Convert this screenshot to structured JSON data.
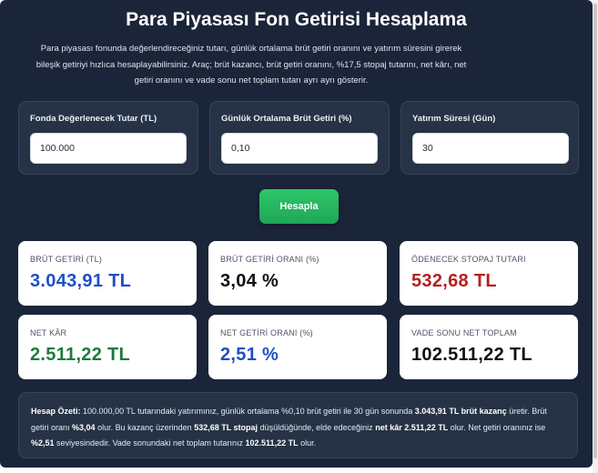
{
  "header": {
    "title": "Para Piyasası Fon Getirisi Hesaplama",
    "desc_line1": "Para piyasası fonunda değerlendireceğiniz tutarı, günlük ortalama brüt getiri oranını ve yatırım süresini girerek",
    "desc_line2": "bileşik getiriyi hızlıca hesaplayabilirsiniz. Araç; brüt kazancı, brüt getiri oranını, %17,5 stopaj tutarını, net kârı, net",
    "desc_line3": "getiri oranını ve vade sonu net toplam tutarı ayrı ayrı gösterir."
  },
  "inputs": {
    "amount": {
      "label": "Fonda Değerlenecek Tutar (TL)",
      "value": "100.000"
    },
    "rate": {
      "label": "Günlük Ortalama Brüt Getiri (%)",
      "value": "0,10"
    },
    "days": {
      "label": "Yatırım Süresi (Gün)",
      "value": "30"
    }
  },
  "calculate_label": "Hesapla",
  "results": [
    {
      "label": "BRÜT GETİRİ (TL)",
      "value": "3.043,91 TL",
      "color": "#1f4fc4"
    },
    {
      "label": "BRÜT GETİRİ ORANI (%)",
      "value": "3,04 %",
      "color": "#111111"
    },
    {
      "label": "ÖDENECEK STOPAJ TUTARI",
      "value": "532,68 TL",
      "color": "#b32020"
    },
    {
      "label": "NET KÂR",
      "value": "2.511,22 TL",
      "color": "#1e7a3c"
    },
    {
      "label": "NET GETİRİ ORANI (%)",
      "value": "2,51 %",
      "color": "#1f4fc4"
    },
    {
      "label": "VADE SONU NET TOPLAM",
      "value": "102.511,22 TL",
      "color": "#111111"
    }
  ],
  "summary": {
    "title": "Hesap Özeti:",
    "p1": "100.000,00 TL tutarındaki yatırımınız, günlük ortalama %0,10 brüt getiri ile 30 gün sonunda",
    "b1": "3.043,91 TL brüt kazanç",
    "p2": "üretir. Brüt getiri oranı",
    "b2": "%3,04",
    "p3": "olur. Bu kazanç üzerinden",
    "b3": "532,68 TL stopaj",
    "p4": "düşüldüğünde, elde edeceğiniz",
    "b4": "net kâr 2.511,22 TL",
    "p5": "olur. Net getiri oranınız ise",
    "b5": "%2,51",
    "p6": "seviyesindedir. Vade sonundaki net toplam tutarınız",
    "b6": "102.511,22 TL",
    "p7": "olur."
  }
}
